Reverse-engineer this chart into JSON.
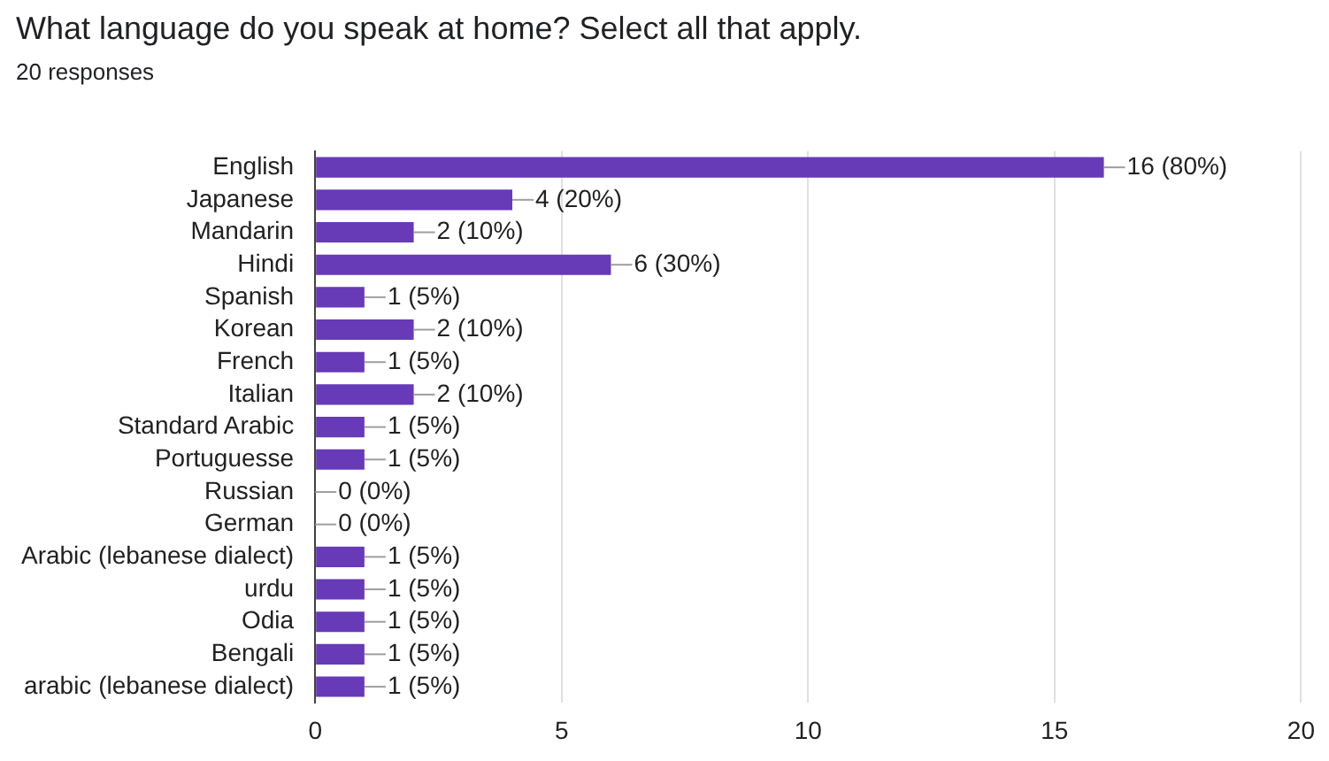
{
  "chart_data": {
    "type": "bar",
    "orientation": "horizontal",
    "title": "What language do you speak at home? Select all that apply.",
    "subtitle": "20 responses",
    "categories": [
      "English",
      "Japanese",
      "Mandarin",
      "Hindi",
      "Spanish",
      "Korean",
      "French",
      "Italian",
      "Standard Arabic",
      "Portuguesse",
      "Russian",
      "German",
      "Arabic (lebanese dialect)",
      "urdu",
      "Odia",
      "Bengali",
      "arabic (lebanese dialect)"
    ],
    "values": [
      16,
      4,
      2,
      6,
      1,
      2,
      1,
      2,
      1,
      1,
      0,
      0,
      1,
      1,
      1,
      1,
      1
    ],
    "value_labels": [
      "16 (80%)",
      "4 (20%)",
      "2 (10%)",
      "6 (30%)",
      "1 (5%)",
      "2 (10%)",
      "1 (5%)",
      "2 (10%)",
      "1 (5%)",
      "1 (5%)",
      "0 (0%)",
      "0 (0%)",
      "1 (5%)",
      "1 (5%)",
      "1 (5%)",
      "1 (5%)",
      "1 (5%)"
    ],
    "color": "#673ab7",
    "xlim": [
      0,
      20
    ],
    "xticks": [
      0,
      5,
      10,
      15,
      20
    ],
    "grid": "x",
    "legend": false
  }
}
